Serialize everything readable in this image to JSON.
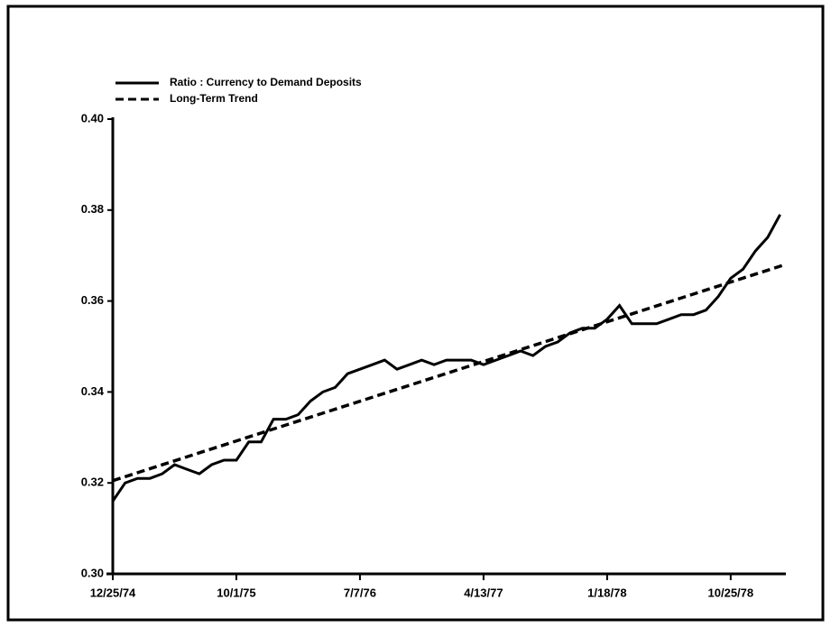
{
  "chart_data": {
    "type": "line",
    "series": [
      {
        "name": "Ratio : Currency to Demand Deposits",
        "color": "#000000",
        "dash": false,
        "x": [
          "1974-12-25",
          "1975-01-22",
          "1975-02-19",
          "1975-03-19",
          "1975-04-16",
          "1975-05-14",
          "1975-06-11",
          "1975-07-09",
          "1975-08-06",
          "1975-09-03",
          "1975-10-01",
          "1975-10-29",
          "1975-11-26",
          "1975-12-24",
          "1976-01-21",
          "1976-02-18",
          "1976-03-17",
          "1976-04-14",
          "1976-05-12",
          "1976-06-09",
          "1976-07-07",
          "1976-08-04",
          "1976-09-01",
          "1976-09-29",
          "1976-10-27",
          "1976-11-24",
          "1976-12-22",
          "1977-01-19",
          "1977-02-16",
          "1977-03-16",
          "1977-04-13",
          "1977-05-11",
          "1977-06-08",
          "1977-07-06",
          "1977-08-03",
          "1977-08-31",
          "1977-09-28",
          "1977-10-26",
          "1977-11-23",
          "1977-12-21",
          "1978-01-18",
          "1978-02-15",
          "1978-03-15",
          "1978-04-12",
          "1978-05-10",
          "1978-06-07",
          "1978-07-05",
          "1978-08-02",
          "1978-08-30",
          "1978-09-27",
          "1978-10-25",
          "1978-11-22",
          "1978-12-20",
          "1979-01-17",
          "1979-02-14"
        ],
        "values": [
          0.316,
          0.32,
          0.321,
          0.321,
          0.322,
          0.324,
          0.323,
          0.322,
          0.324,
          0.325,
          0.325,
          0.329,
          0.329,
          0.334,
          0.334,
          0.335,
          0.338,
          0.34,
          0.341,
          0.344,
          0.345,
          0.346,
          0.347,
          0.345,
          0.346,
          0.347,
          0.346,
          0.347,
          0.347,
          0.347,
          0.346,
          0.347,
          0.348,
          0.349,
          0.348,
          0.35,
          0.351,
          0.353,
          0.354,
          0.354,
          0.356,
          0.359,
          0.355,
          0.355,
          0.355,
          0.356,
          0.357,
          0.357,
          0.358,
          0.361,
          0.365,
          0.367,
          0.371,
          0.374,
          0.379
        ]
      },
      {
        "name": "Long-Term Trend",
        "color": "#000000",
        "dash": true,
        "x": [
          "1974-12-25",
          "1979-02-25"
        ],
        "values": [
          0.3205,
          0.368
        ]
      }
    ],
    "xlim": [
      "1974-12-25",
      "1979-02-25"
    ],
    "xticks": [
      {
        "value": "1974-12-25",
        "label": "12/25/74"
      },
      {
        "value": "1975-10-01",
        "label": "10/1/75"
      },
      {
        "value": "1976-07-07",
        "label": "7/7/76"
      },
      {
        "value": "1977-04-13",
        "label": "4/13/77"
      },
      {
        "value": "1978-01-18",
        "label": "1/18/78"
      },
      {
        "value": "1978-10-25",
        "label": "10/25/78"
      }
    ],
    "ylim": [
      0.3,
      0.4
    ],
    "yticks": [
      {
        "value": 0.3,
        "label": "0.30"
      },
      0.32,
      0.34,
      0.36,
      0.38,
      {
        "value": 0.4,
        "label": "0.40"
      }
    ],
    "grid": false,
    "legend": "upper left"
  }
}
